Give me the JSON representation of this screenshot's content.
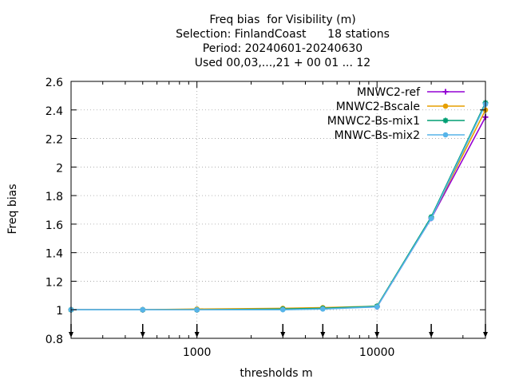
{
  "chart_data": {
    "type": "line",
    "title_lines": [
      "Freq bias  for Visibility (m)",
      "Selection: FinlandCoast      18 stations",
      "Period: 20240601-20240630",
      "Used 00,03,...,21 + 00 01 ... 12"
    ],
    "xlabel": "thresholds m",
    "ylabel": "Freq bias",
    "x_scale": "log",
    "xlim": [
      200,
      40000
    ],
    "ylim": [
      0.8,
      2.6
    ],
    "x_ticks": [
      1000,
      10000
    ],
    "x_tick_labels": [
      "1000",
      "10000"
    ],
    "y_ticks": [
      0.8,
      1.0,
      1.2,
      1.4,
      1.6,
      1.8,
      2.0,
      2.2,
      2.4,
      2.6
    ],
    "y_tick_labels": [
      "0.8",
      "1",
      "1.2",
      "1.4",
      "1.6",
      "1.8",
      "2",
      "2.2",
      "2.4",
      "2.6"
    ],
    "grid": true,
    "legend_position": "top-right",
    "x": [
      200,
      500,
      1000,
      3000,
      5000,
      10000,
      20000,
      40000
    ],
    "series": [
      {
        "name": "MNWC2-ref",
        "color": "#9400d3",
        "marker": "plus",
        "values": [
          1.0,
          1.0,
          1.0,
          1.005,
          1.01,
          1.02,
          1.64,
          2.35
        ]
      },
      {
        "name": "MNWC2-Bscale",
        "color": "#e69f00",
        "marker": "circle",
        "values": [
          1.0,
          1.0,
          1.005,
          1.01,
          1.015,
          1.025,
          1.645,
          2.4
        ]
      },
      {
        "name": "MNWC2-Bs-mix1",
        "color": "#009e73",
        "marker": "star",
        "values": [
          1.0,
          1.0,
          1.0,
          1.005,
          1.01,
          1.025,
          1.65,
          2.45
        ]
      },
      {
        "name": "MNWC-Bs-mix2",
        "color": "#56b4e9",
        "marker": "circle",
        "values": [
          1.0,
          1.0,
          1.0,
          1.0,
          1.005,
          1.02,
          1.64,
          2.44
        ]
      }
    ],
    "arrows_at": [
      200,
      500,
      1000,
      3000,
      5000,
      10000,
      20000,
      40000
    ]
  }
}
